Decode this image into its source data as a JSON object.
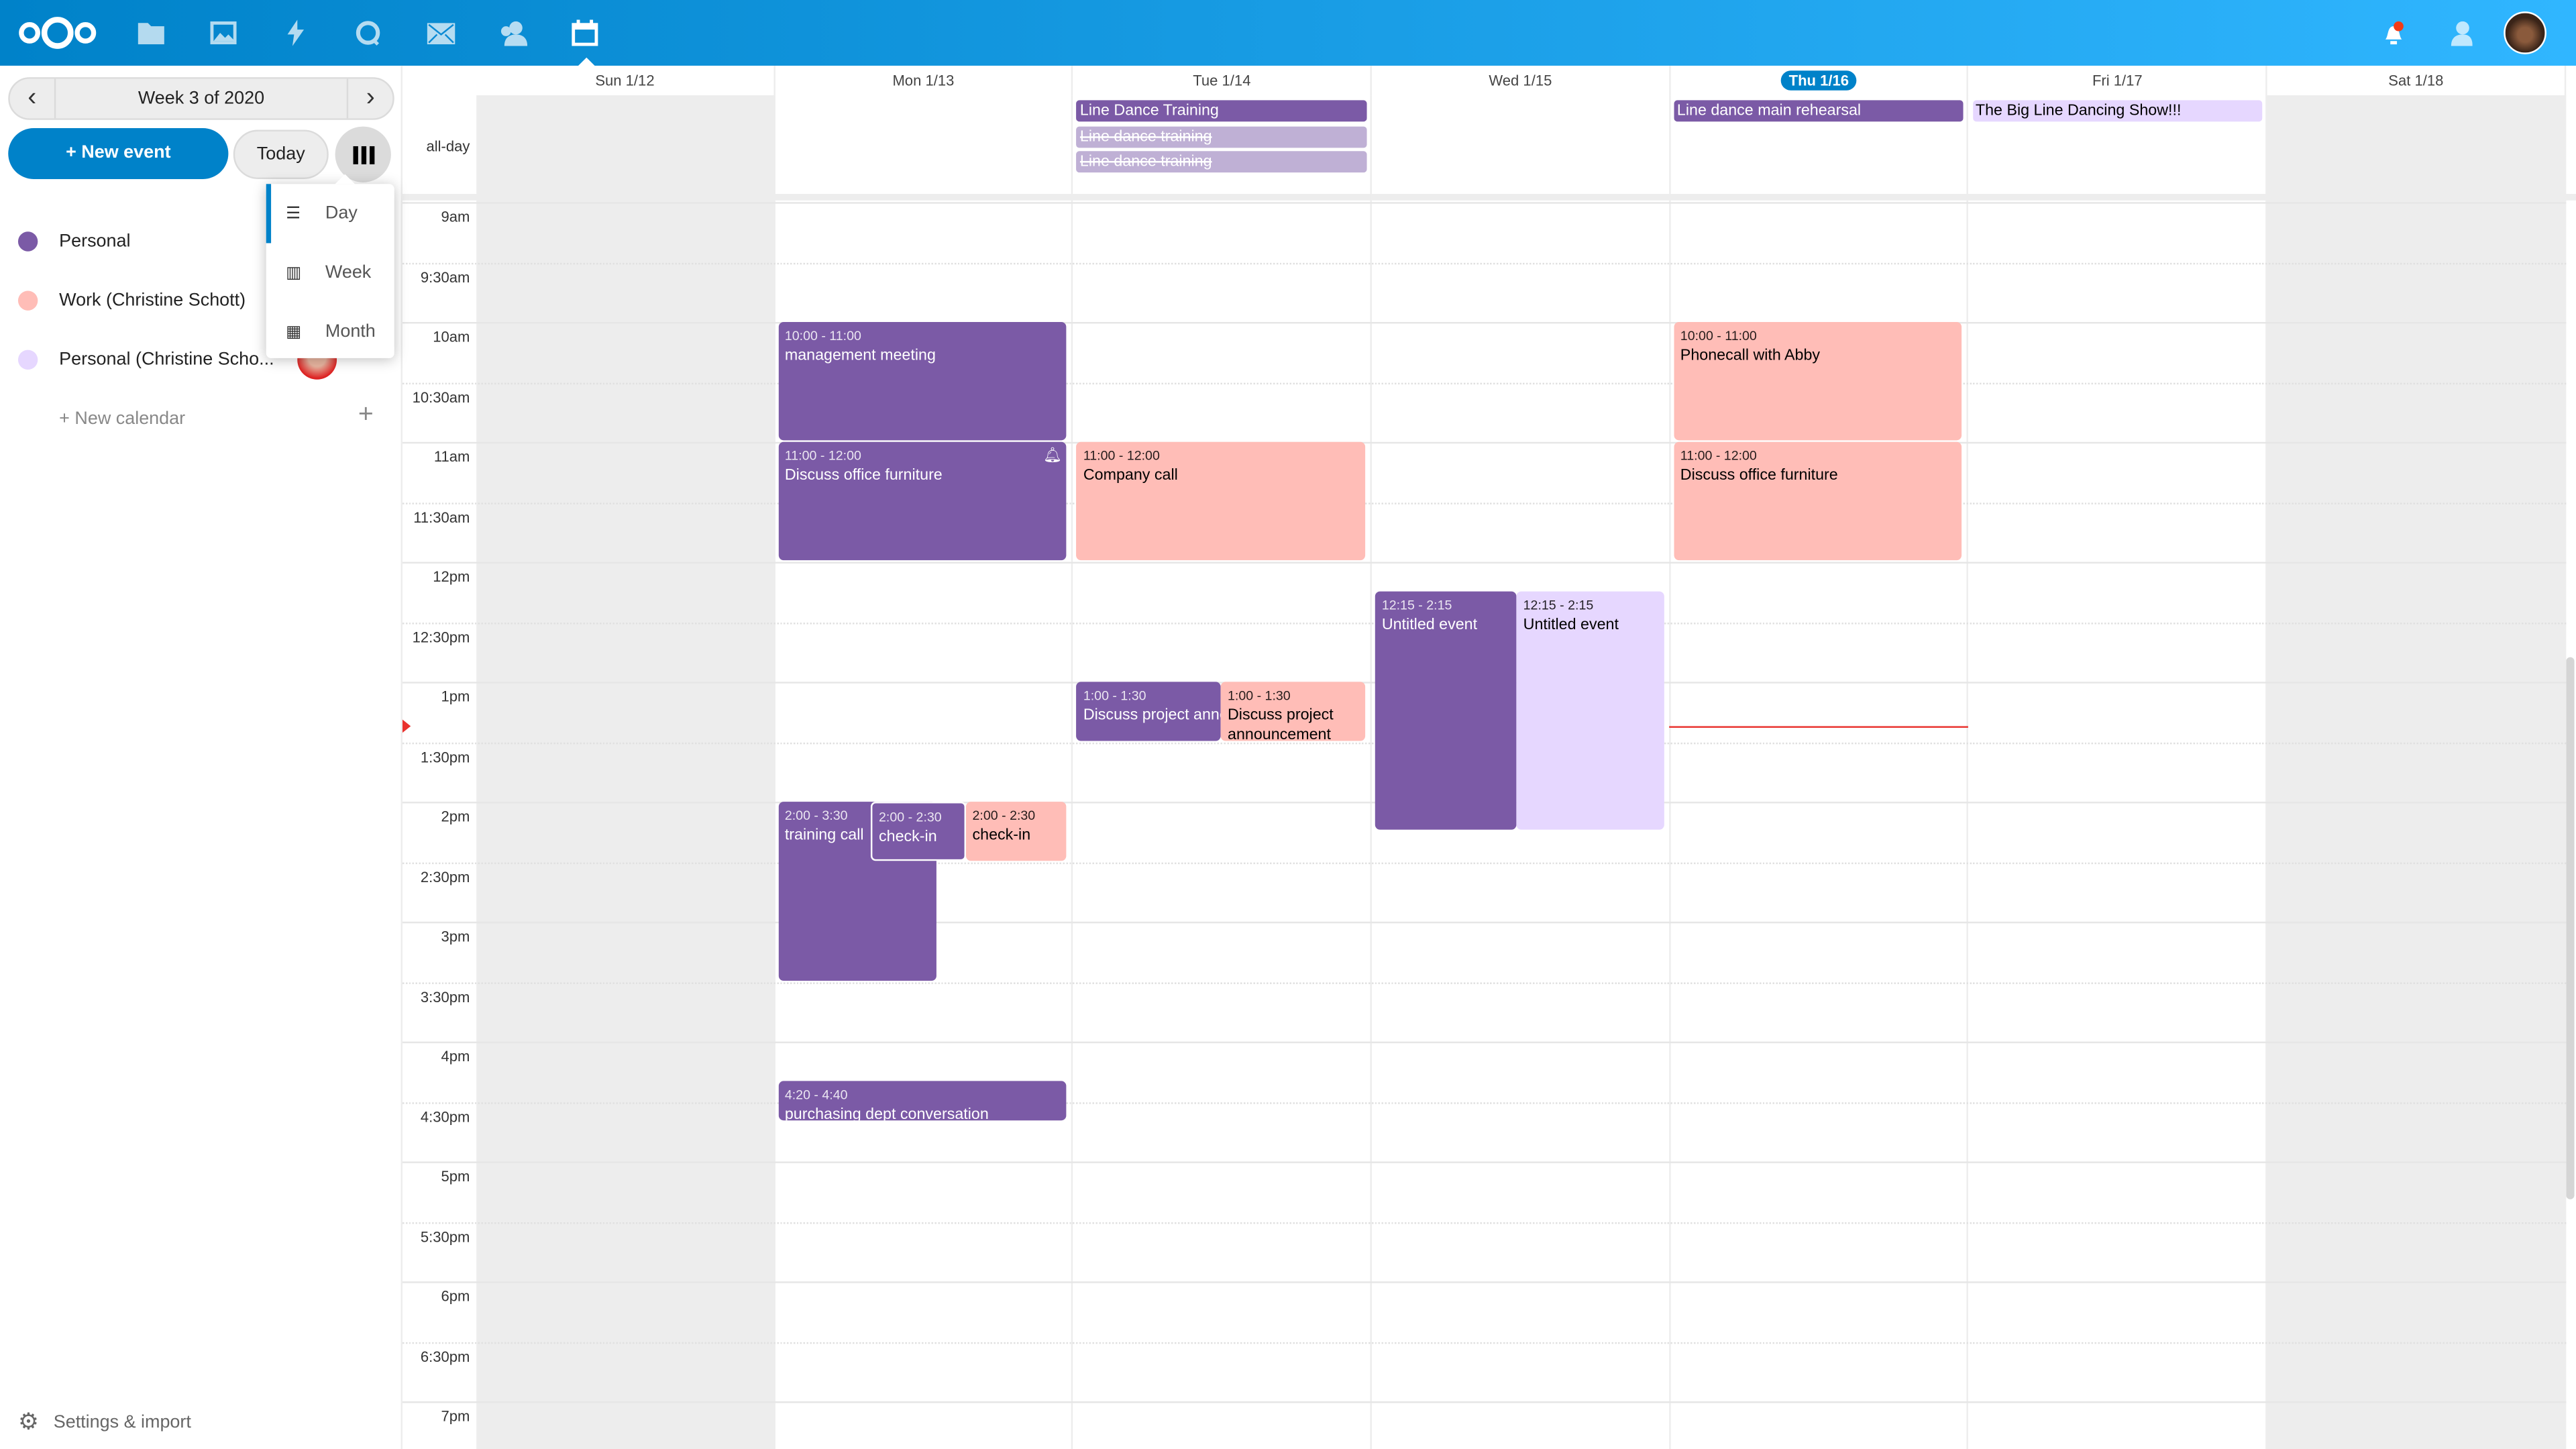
{
  "header": {
    "apps": [
      {
        "icon": "nextcloud-logo"
      },
      {
        "icon": "files-icon"
      },
      {
        "icon": "photos-icon"
      },
      {
        "icon": "activity-icon"
      },
      {
        "icon": "talk-icon"
      },
      {
        "icon": "mail-icon"
      },
      {
        "icon": "contacts-icon"
      },
      {
        "icon": "calendar-icon",
        "active": true
      }
    ],
    "right": [
      {
        "icon": "notifications-icon",
        "badge": true
      },
      {
        "icon": "contacts-menu-icon"
      },
      {
        "icon": "user-avatar"
      }
    ],
    "colors": {
      "primary": "#0082c9",
      "accent": "#30b6ff"
    }
  },
  "sidebar": {
    "week_label": "Week 3 of 2020",
    "new_event": "+ New event",
    "today": "Today",
    "view_menu": [
      {
        "label": "Day",
        "selected": true
      },
      {
        "label": "Week"
      },
      {
        "label": "Month"
      }
    ],
    "calendars": [
      {
        "name": "Personal",
        "color": "#7b5aa6"
      },
      {
        "name": "Work (Christine Schott)",
        "color": "#ffbdb7"
      },
      {
        "name": "Personal (Christine Scho...",
        "color": "#e6d7ff",
        "shared": true
      }
    ],
    "new_calendar": "+ New calendar",
    "settings": "Settings & import"
  },
  "calendar": {
    "days": [
      {
        "label": "Sun 1/12",
        "weekend": true
      },
      {
        "label": "Mon 1/13"
      },
      {
        "label": "Tue 1/14"
      },
      {
        "label": "Wed 1/15"
      },
      {
        "label": "Thu 1/16",
        "today": true
      },
      {
        "label": "Fri 1/17"
      },
      {
        "label": "Sat 1/18",
        "weekend": true
      }
    ],
    "allday_label": "all-day",
    "time_labels": [
      "9am",
      "9:30am",
      "10am",
      "10:30am",
      "11am",
      "11:30am",
      "12pm",
      "12:30pm",
      "1pm",
      "1:30pm",
      "2pm",
      "2:30pm",
      "3pm",
      "3:30pm",
      "4pm",
      "4:30pm",
      "5pm",
      "5:30pm",
      "6pm",
      "6:30pm",
      "7pm"
    ],
    "allday_events": [
      {
        "day": 2,
        "title": "Line Dance Training",
        "style": "purple"
      },
      {
        "day": 2,
        "title": "Line dance training",
        "style": "lightp",
        "cancelled": true
      },
      {
        "day": 2,
        "title": "Line dance training",
        "style": "lightp",
        "cancelled": true
      },
      {
        "day": 4,
        "title": "Line dance main rehearsal",
        "style": "purple"
      },
      {
        "day": 5,
        "title": "The Big Line Dancing Show!!!",
        "style": "lav"
      }
    ],
    "events": [
      {
        "day": 1,
        "time": "10:00 - 11:00",
        "title": "management meeting",
        "style": "purple"
      },
      {
        "day": 1,
        "time": "11:00 - 12:00",
        "title": "Discuss office furniture",
        "style": "purple",
        "alarm": true
      },
      {
        "day": 1,
        "time": "2:00 - 3:30",
        "title": "training call",
        "style": "purple"
      },
      {
        "day": 1,
        "time": "2:00 - 2:30",
        "title": "check-in",
        "style": "purple"
      },
      {
        "day": 1,
        "time": "2:00 - 2:30",
        "title": "check-in",
        "style": "pink"
      },
      {
        "day": 1,
        "time": "4:20 - 4:40",
        "title": "purchasing dept conversation",
        "style": "purple"
      },
      {
        "day": 2,
        "time": "11:00 - 12:00",
        "title": "Company call",
        "style": "pink"
      },
      {
        "day": 2,
        "time": "1:00 - 1:30",
        "title": "Discuss project announcement",
        "style": "purple"
      },
      {
        "day": 2,
        "time": "1:00 - 1:30",
        "title": "Discuss project announcement",
        "style": "pink"
      },
      {
        "day": 3,
        "time": "12:15 - 2:15",
        "title": "Untitled event",
        "style": "purple"
      },
      {
        "day": 3,
        "time": "12:15 - 2:15",
        "title": "Untitled event",
        "style": "lav"
      },
      {
        "day": 4,
        "time": "10:00 - 11:00",
        "title": "Phonecall with Abby",
        "style": "pink"
      },
      {
        "day": 4,
        "time": "11:00 - 12:00",
        "title": "Discuss office furniture",
        "style": "pink"
      }
    ],
    "current_time": "1:22pm"
  }
}
